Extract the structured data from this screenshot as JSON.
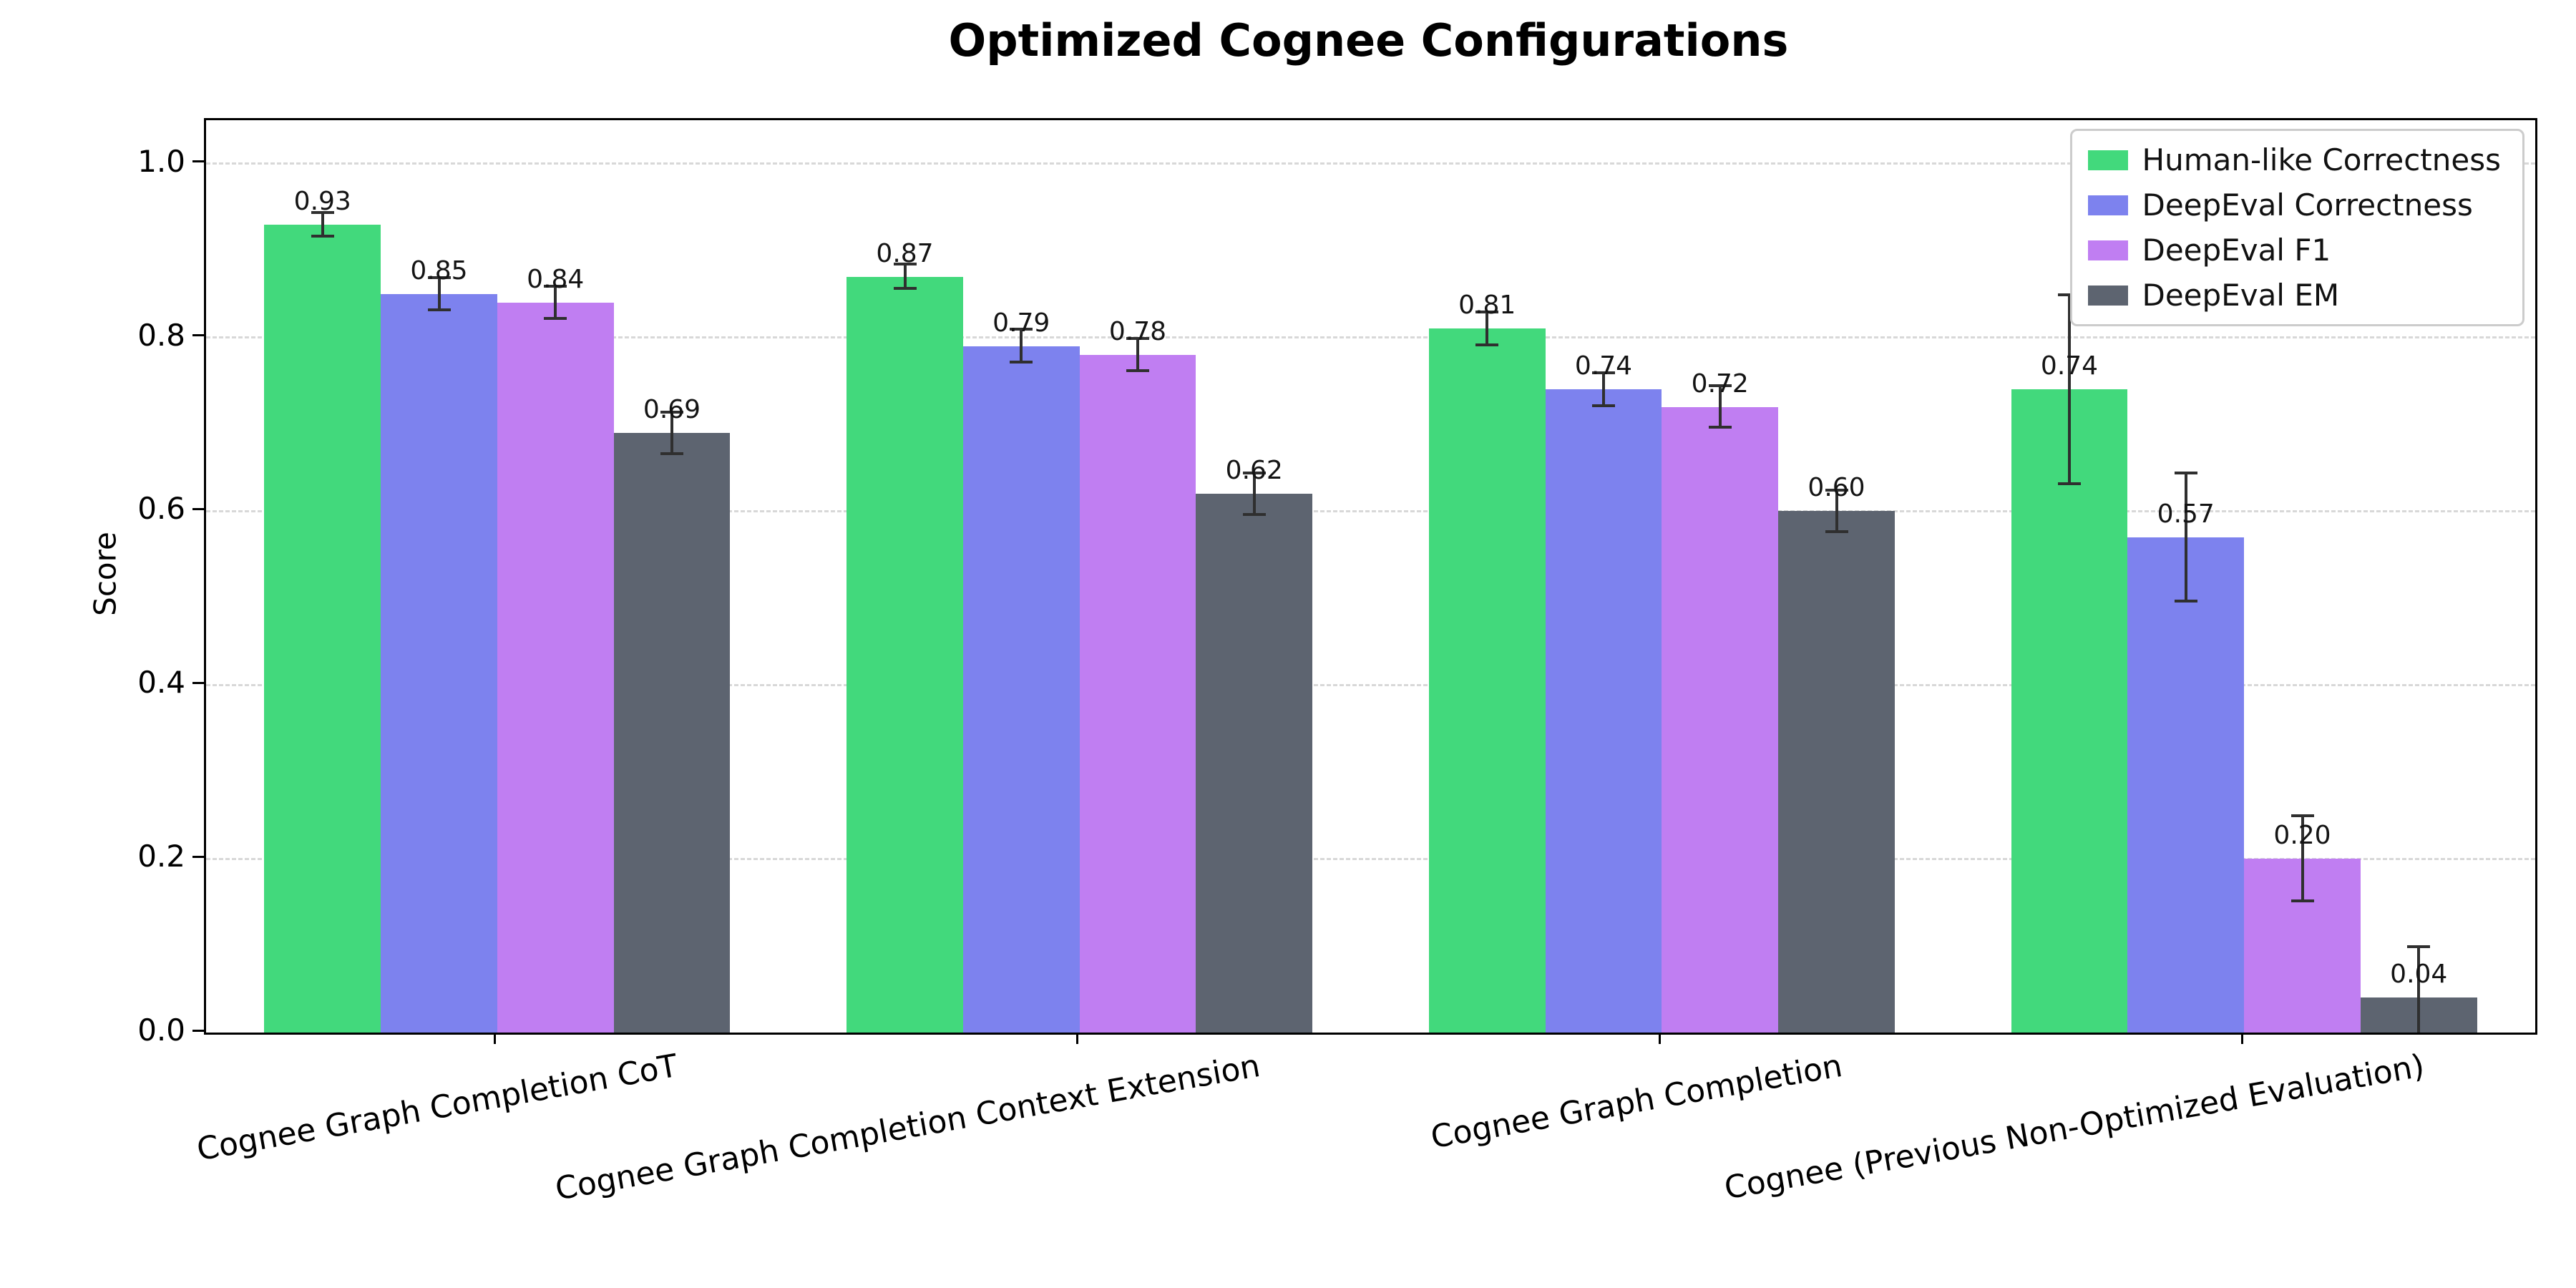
{
  "chart_data": {
    "type": "bar",
    "title": "Optimized Cognee Configurations",
    "xlabel": "",
    "ylabel": "Score",
    "ylim": [
      0.0,
      1.05
    ],
    "yticks": [
      "0.0",
      "0.2",
      "0.4",
      "0.6",
      "0.8",
      "1.0"
    ],
    "grid": "horizontal-dashed",
    "legend_position": "upper-right",
    "background": "#ffffff",
    "error_bar_color": "#2f2f2f",
    "categories": [
      "Cognee Graph Completion CoT",
      "Cognee Graph Completion Context Extension",
      "Cognee Graph Completion",
      "Cognee (Previous Non-Optimized Evaluation)"
    ],
    "series": [
      {
        "name": "Human-like Correctness",
        "color": "#42d97c",
        "values": [
          0.93,
          0.87,
          0.81,
          0.74
        ],
        "errors": [
          0.015,
          0.015,
          0.02,
          0.11
        ]
      },
      {
        "name": "DeepEval Correctness",
        "color": "#7d82ee",
        "values": [
          0.85,
          0.79,
          0.74,
          0.57
        ],
        "errors": [
          0.02,
          0.02,
          0.02,
          0.075
        ]
      },
      {
        "name": "DeepEval F1",
        "color": "#c07ef2",
        "values": [
          0.84,
          0.78,
          0.72,
          0.2
        ],
        "errors": [
          0.02,
          0.02,
          0.025,
          0.05
        ]
      },
      {
        "name": "DeepEval EM",
        "color": "#5d6470",
        "values": [
          0.69,
          0.62,
          0.6,
          0.04
        ],
        "errors": [
          0.025,
          0.025,
          0.025,
          0.06
        ]
      }
    ],
    "bar_labels": [
      [
        "0.93",
        "0.87",
        "0.81",
        "0.74"
      ],
      [
        "0.85",
        "0.79",
        "0.74",
        "0.57"
      ],
      [
        "0.84",
        "0.78",
        "0.72",
        "0.20"
      ],
      [
        "0.69",
        "0.62",
        "0.60",
        "0.04"
      ]
    ]
  }
}
